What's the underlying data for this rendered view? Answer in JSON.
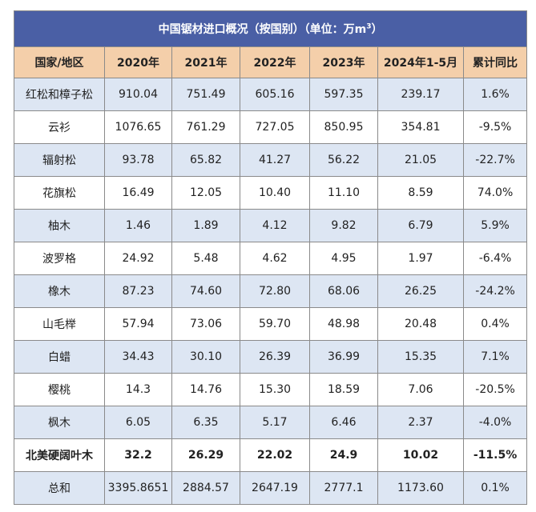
{
  "table": {
    "title": "中国锯材进口概况（按国别）（单位：万m",
    "title_sup": "3",
    "title_end": "）",
    "headers": [
      "国家/地区",
      "2020年",
      "2021年",
      "2022年",
      "2023年",
      "2024年1-5月",
      "累计同比"
    ],
    "rows": [
      {
        "cells": [
          "红松和樟子松",
          "910.04",
          "751.49",
          "605.16",
          "597.35",
          "239.17",
          "1.6%"
        ],
        "bold": false
      },
      {
        "cells": [
          "云衫",
          "1076.65",
          "761.29",
          "727.05",
          "850.95",
          "354.81",
          "-9.5%"
        ],
        "bold": false
      },
      {
        "cells": [
          "辐射松",
          "93.78",
          "65.82",
          "41.27",
          "56.22",
          "21.05",
          "-22.7%"
        ],
        "bold": false
      },
      {
        "cells": [
          "花旗松",
          "16.49",
          "12.05",
          "10.40",
          "11.10",
          "8.59",
          "74.0%"
        ],
        "bold": false
      },
      {
        "cells": [
          "柚木",
          "1.46",
          "1.89",
          "4.12",
          "9.82",
          "6.79",
          "5.9%"
        ],
        "bold": false
      },
      {
        "cells": [
          "波罗格",
          "24.92",
          "5.48",
          "4.62",
          "4.95",
          "1.97",
          "-6.4%"
        ],
        "bold": false
      },
      {
        "cells": [
          "橡木",
          "87.23",
          "74.60",
          "72.80",
          "68.06",
          "26.25",
          "-24.2%"
        ],
        "bold": false
      },
      {
        "cells": [
          "山毛榉",
          "57.94",
          "73.06",
          "59.70",
          "48.98",
          "20.48",
          "0.4%"
        ],
        "bold": false
      },
      {
        "cells": [
          "白蜡",
          "34.43",
          "30.10",
          "26.39",
          "36.99",
          "15.35",
          "7.1%"
        ],
        "bold": false
      },
      {
        "cells": [
          "樱桃",
          "14.3",
          "14.76",
          "15.30",
          "18.59",
          "7.06",
          "-20.5%"
        ],
        "bold": false
      },
      {
        "cells": [
          "枫木",
          "6.05",
          "6.35",
          "5.17",
          "6.46",
          "2.37",
          "-4.0%"
        ],
        "bold": false
      },
      {
        "cells": [
          "北美硬阔叶木",
          "32.2",
          "26.29",
          "22.02",
          "24.9",
          "10.02",
          "-11.5%"
        ],
        "bold": true
      },
      {
        "cells": [
          "总和",
          "3395.8651",
          "2884.57",
          "2647.19",
          "2777.1",
          "1173.60",
          "0.1%"
        ],
        "bold": false
      }
    ]
  }
}
